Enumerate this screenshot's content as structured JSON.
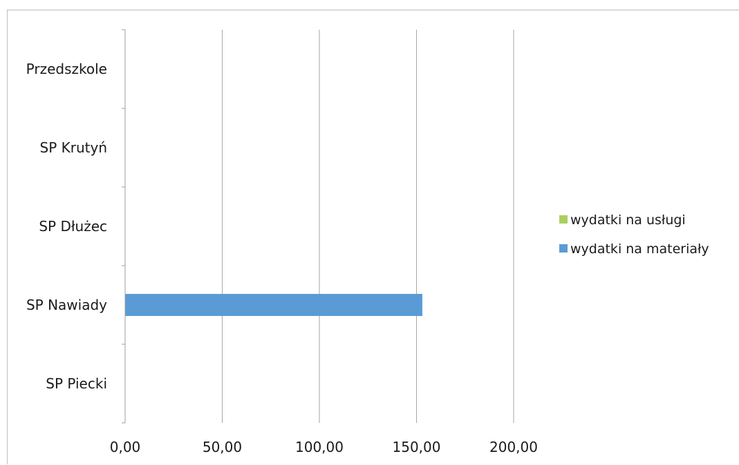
{
  "chart_data": {
    "type": "bar",
    "orientation": "horizontal",
    "categories": [
      "SP Piecki",
      "SP Nawiady",
      "SP Dłużec",
      "SP Krutyń",
      "Przedszkole"
    ],
    "series": [
      {
        "name": "wydatki na materiały",
        "color": "#5b9bd5",
        "values": [
          0,
          153,
          0,
          0,
          0
        ]
      },
      {
        "name": "wydatki na usługi",
        "color": "#a9d05f",
        "values": [
          0,
          0,
          0,
          0,
          0
        ]
      }
    ],
    "xlim": [
      0,
      200
    ],
    "x_ticks": [
      0,
      50,
      100,
      150,
      200
    ],
    "x_tick_labels": [
      "0,00",
      "50,00",
      "100,00",
      "150,00",
      "200,00"
    ],
    "legend": {
      "position": "right",
      "entries": [
        {
          "name": "wydatki na usługi",
          "color": "#a9d05f"
        },
        {
          "name": "wydatki na materiały",
          "color": "#5b9bd5"
        }
      ]
    },
    "grid": true,
    "gridline_color": "#a6a6a6",
    "axis_color": "#9e9e9e"
  }
}
